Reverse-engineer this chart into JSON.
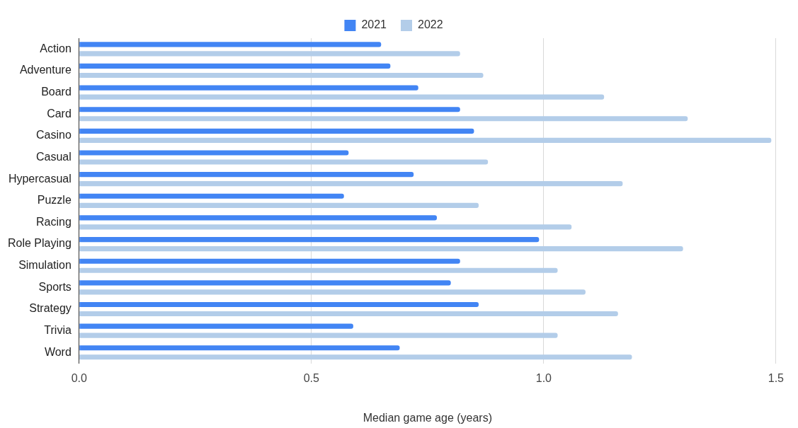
{
  "chart_data": {
    "type": "bar",
    "orientation": "horizontal",
    "xlabel": "Median game age (years)",
    "categories": [
      "Action",
      "Adventure",
      "Board",
      "Card",
      "Casino",
      "Casual",
      "Hypercasual",
      "Puzzle",
      "Racing",
      "Role Playing",
      "Simulation",
      "Sports",
      "Strategy",
      "Trivia",
      "Word"
    ],
    "series": [
      {
        "name": "2021",
        "color": "#4285f4",
        "values": [
          0.65,
          0.67,
          0.73,
          0.82,
          0.85,
          0.58,
          0.72,
          0.57,
          0.77,
          0.99,
          0.82,
          0.8,
          0.86,
          0.59,
          0.69
        ]
      },
      {
        "name": "2022",
        "color": "#b3cde9",
        "values": [
          0.82,
          0.87,
          1.13,
          1.31,
          1.49,
          0.88,
          1.17,
          0.86,
          1.06,
          1.3,
          1.03,
          1.09,
          1.16,
          1.03,
          1.19
        ]
      }
    ],
    "xlim": [
      0,
      1.5
    ],
    "xticks": [
      {
        "value": 0,
        "label": "0.0"
      },
      {
        "value": 0.5,
        "label": "0.5"
      },
      {
        "value": 1,
        "label": "1.0"
      },
      {
        "value": 1.5,
        "label": "1.5"
      }
    ],
    "grid": "x",
    "legend": "top"
  }
}
